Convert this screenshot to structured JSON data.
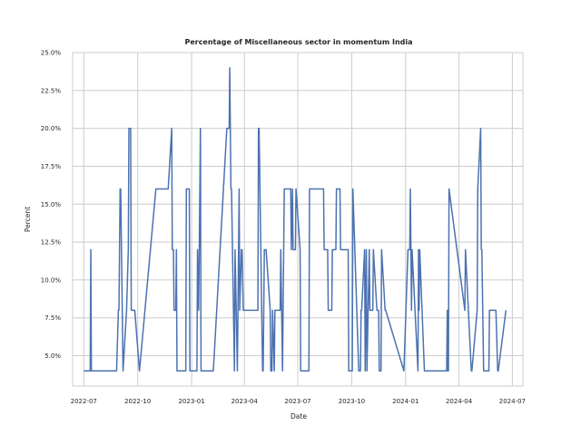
{
  "chart_data": {
    "type": "line",
    "title": "Percentage of Miscellaneous sector in momentum India",
    "xlabel": "Date",
    "ylabel": "Percent",
    "x_ticks": [
      "2022-07",
      "2022-10",
      "2023-01",
      "2023-04",
      "2023-07",
      "2023-10",
      "2024-01",
      "2024-04",
      "2024-07"
    ],
    "y_ticks": [
      "5.0%",
      "7.5%",
      "10.0%",
      "12.5%",
      "15.0%",
      "17.5%",
      "20.0%",
      "22.5%",
      "25.0%"
    ],
    "xlim": [
      "2022-06-12",
      "2024-07-19"
    ],
    "ylim": [
      3.0,
      25.0
    ],
    "grid": true,
    "line_color": "#4c72b0",
    "series": [
      {
        "x": [
          "2022-07-01",
          "2022-07-12",
          "2022-07-13",
          "2022-07-14",
          "2022-08-26",
          "2022-08-29",
          "2022-08-30",
          "2022-09-01",
          "2022-09-02",
          "2022-09-06",
          "2022-09-12",
          "2022-09-15",
          "2022-09-16",
          "2022-09-19",
          "2022-09-20",
          "2022-09-22",
          "2022-09-23",
          "2022-09-26",
          "2022-10-04",
          "2022-11-01",
          "2022-11-22",
          "2022-11-28",
          "2022-11-29",
          "2022-12-01",
          "2022-12-02",
          "2022-12-05",
          "2022-12-06",
          "2022-12-07",
          "2022-12-08",
          "2022-12-09",
          "2022-12-22",
          "2022-12-23",
          "2022-12-28",
          "2022-12-29",
          "2023-01-10",
          "2023-01-11",
          "2023-01-13",
          "2023-01-16",
          "2023-01-17",
          "2023-01-19",
          "2023-01-20",
          "2023-02-07",
          "2023-03-02",
          "2023-03-06",
          "2023-03-07",
          "2023-03-09",
          "2023-03-10",
          "2023-03-15",
          "2023-03-16",
          "2023-03-20",
          "2023-03-21",
          "2023-03-23",
          "2023-03-24",
          "2023-03-27",
          "2023-03-28",
          "2023-03-30",
          "2023-04-03",
          "2023-04-04",
          "2023-04-24",
          "2023-04-25",
          "2023-04-26",
          "2023-05-02",
          "2023-05-03",
          "2023-05-05",
          "2023-05-08",
          "2023-05-15",
          "2023-05-16",
          "2023-05-18",
          "2023-05-19",
          "2023-05-22",
          "2023-05-23",
          "2023-06-01",
          "2023-06-02",
          "2023-06-05",
          "2023-06-06",
          "2023-06-08",
          "2023-06-09",
          "2023-06-19",
          "2023-06-20",
          "2023-06-22",
          "2023-06-23",
          "2023-06-27",
          "2023-06-28",
          "2023-07-05",
          "2023-07-06",
          "2023-07-10",
          "2023-07-11",
          "2023-07-20",
          "2023-07-21",
          "2023-08-14",
          "2023-08-15",
          "2023-08-21",
          "2023-08-22",
          "2023-08-28",
          "2023-08-29",
          "2023-09-04",
          "2023-09-05",
          "2023-09-11",
          "2023-09-12",
          "2023-09-25",
          "2023-09-26",
          "2023-09-27",
          "2023-09-28",
          "2023-10-02",
          "2023-10-03",
          "2023-10-13",
          "2023-10-16",
          "2023-10-17",
          "2023-10-18",
          "2023-10-23",
          "2023-10-24",
          "2023-10-26",
          "2023-10-27",
          "2023-10-31",
          "2023-11-01",
          "2023-11-06",
          "2023-11-07",
          "2023-11-13",
          "2023-11-14",
          "2023-11-16",
          "2023-11-17",
          "2023-11-20",
          "2023-11-21",
          "2023-11-27",
          "2023-11-28",
          "2023-12-29",
          "2024-01-05",
          "2024-01-08",
          "2024-01-09",
          "2024-01-11",
          "2024-01-12",
          "2024-01-22",
          "2024-01-23",
          "2024-01-24",
          "2024-01-25",
          "2024-02-02",
          "2024-02-05",
          "2024-02-06",
          "2024-02-07",
          "2024-03-11",
          "2024-03-12",
          "2024-03-13",
          "2024-03-14",
          "2024-03-15",
          "2024-04-11",
          "2024-04-12",
          "2024-04-22",
          "2024-04-23",
          "2024-05-02",
          "2024-05-03",
          "2024-05-08",
          "2024-05-09",
          "2024-05-10",
          "2024-05-13",
          "2024-05-14",
          "2024-05-15",
          "2024-05-16",
          "2024-05-22",
          "2024-05-23",
          "2024-05-31",
          "2024-06-03",
          "2024-06-06",
          "2024-06-07",
          "2024-06-20"
        ],
        "y": [
          4,
          4,
          12,
          4,
          4,
          8,
          8,
          16,
          16,
          4,
          8,
          12,
          20,
          20,
          8,
          8,
          8,
          8,
          4,
          16,
          16,
          20,
          12,
          12,
          8,
          8,
          12,
          4,
          4,
          4,
          4,
          16,
          16,
          4,
          4,
          12,
          8,
          20,
          4,
          4,
          4,
          4,
          20,
          20,
          24,
          16,
          16,
          4,
          12,
          4,
          8,
          16,
          8,
          12,
          12,
          8,
          8,
          8,
          8,
          20,
          20,
          4,
          4,
          12,
          12,
          8,
          4,
          4,
          8,
          4,
          8,
          8,
          12,
          4,
          8,
          16,
          16,
          16,
          12,
          16,
          12,
          12,
          16,
          12,
          4,
          4,
          4,
          4,
          16,
          16,
          12,
          12,
          8,
          8,
          12,
          12,
          16,
          16,
          12,
          12,
          4,
          4,
          4,
          4,
          16,
          4,
          4,
          8,
          8,
          12,
          4,
          12,
          4,
          12,
          8,
          8,
          12,
          8,
          8,
          8,
          4,
          4,
          12,
          8,
          8,
          4,
          12,
          12,
          16,
          8,
          12,
          4,
          12,
          8,
          12,
          4,
          4,
          4,
          4,
          4,
          8,
          4,
          4,
          16,
          8,
          12,
          4,
          4,
          8,
          16,
          20,
          12,
          12,
          4,
          4,
          4,
          4,
          4,
          8,
          8,
          8,
          4,
          4,
          8
        ]
      }
    ]
  }
}
